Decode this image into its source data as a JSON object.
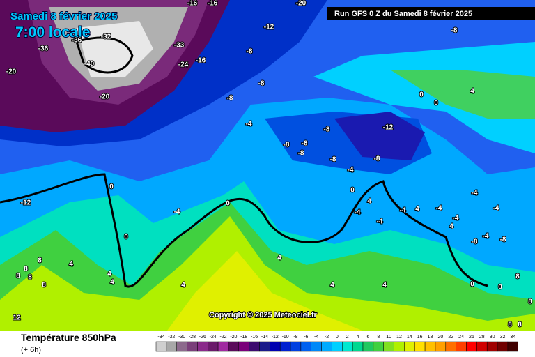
{
  "header": {
    "date": "Samedi 8 février 2025",
    "time": "7:00 locale",
    "run": "Run GFS 0 Z du Samedi 8 février 2025"
  },
  "copyright": "Copyright © 2025 Meteociel.fr",
  "legend": {
    "title": "Température 850hPa",
    "step": "(+ 6h)",
    "ticks": [
      -34,
      -32,
      -30,
      -28,
      -26,
      -24,
      -22,
      -20,
      -18,
      -16,
      -14,
      -12,
      -10,
      -8,
      -6,
      -4,
      -2,
      0,
      2,
      4,
      6,
      8,
      10,
      12,
      14,
      16,
      18,
      20,
      22,
      24,
      26,
      28,
      30,
      32,
      34
    ],
    "colors": [
      "#cfcfcf",
      "#a8a8a8",
      "#8c6a8c",
      "#7a3f7a",
      "#8a2a8a",
      "#6a1a6a",
      "#a02aa0",
      "#5a0a5a",
      "#7a007a",
      "#3c0a6e",
      "#1a1a8a",
      "#0000b0",
      "#0020d0",
      "#0040e0",
      "#0060f0",
      "#0088f8",
      "#00aaff",
      "#00d0ff",
      "#00e8d0",
      "#00d890",
      "#20c860",
      "#40d040",
      "#80e020",
      "#b0f000",
      "#e0f000",
      "#ffe000",
      "#ffc000",
      "#ffa000",
      "#ff7000",
      "#ff4000",
      "#ff0000",
      "#d00000",
      "#a00000",
      "#700000",
      "#400000"
    ]
  },
  "contour_labels": [
    "-16",
    "-16",
    "-20",
    "-32",
    "-36",
    "-33",
    "-36",
    "-40",
    "-24",
    "-16",
    "-12",
    "-8",
    "-20",
    "-8",
    "-8",
    "-20",
    "-8",
    "-4",
    "0",
    "4",
    "0",
    "-8",
    "-12",
    "-8",
    "-8",
    "-8",
    "-8",
    "-8",
    "-4",
    "-12",
    "0",
    "-4",
    "0",
    "0",
    "4",
    "-4",
    "-4",
    "-4",
    "-4",
    "-4",
    "4",
    "-4",
    "-4",
    "4",
    "-8",
    "-4",
    "-8",
    "0",
    "4",
    "4",
    "4",
    "4",
    "4",
    "4",
    "4",
    "0",
    "0",
    "8",
    "8",
    "8",
    "8",
    "8",
    "8",
    "12",
    "8",
    "8",
    "8"
  ]
}
